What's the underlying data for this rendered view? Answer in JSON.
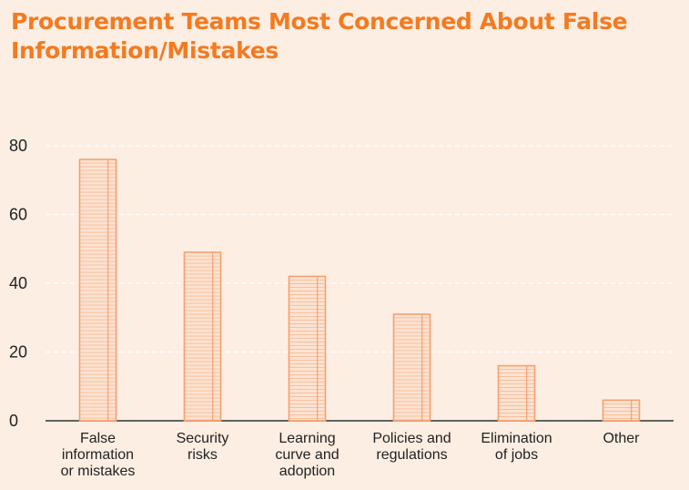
{
  "title": "Procurement Teams Most Concerned About False Information/Mistakes",
  "colors": {
    "background": "#fdeee3",
    "title": "#f47a20",
    "bar_stroke": "#f5a06e",
    "grid": "#ffffff",
    "axis": "#333333"
  },
  "chart_data": {
    "type": "bar",
    "title": "Procurement Teams Most Concerned About False Information/Mistakes",
    "xlabel": "",
    "ylabel": "",
    "ylim": [
      0,
      80
    ],
    "yticks": [
      0,
      20,
      40,
      60,
      80
    ],
    "grid": true,
    "categories": [
      "False information or mistakes",
      "Security risks",
      "Learning curve and adoption",
      "Policies and regulations",
      "Elimination of jobs",
      "Other"
    ],
    "category_lines": [
      [
        "False",
        "information",
        "or mistakes"
      ],
      [
        "Security",
        "risks"
      ],
      [
        "Learning",
        "curve and",
        "adoption"
      ],
      [
        "Policies and",
        "regulations"
      ],
      [
        "Elimination",
        "of jobs"
      ],
      [
        "Other"
      ]
    ],
    "values": [
      76,
      49,
      42,
      31,
      16,
      6
    ]
  }
}
